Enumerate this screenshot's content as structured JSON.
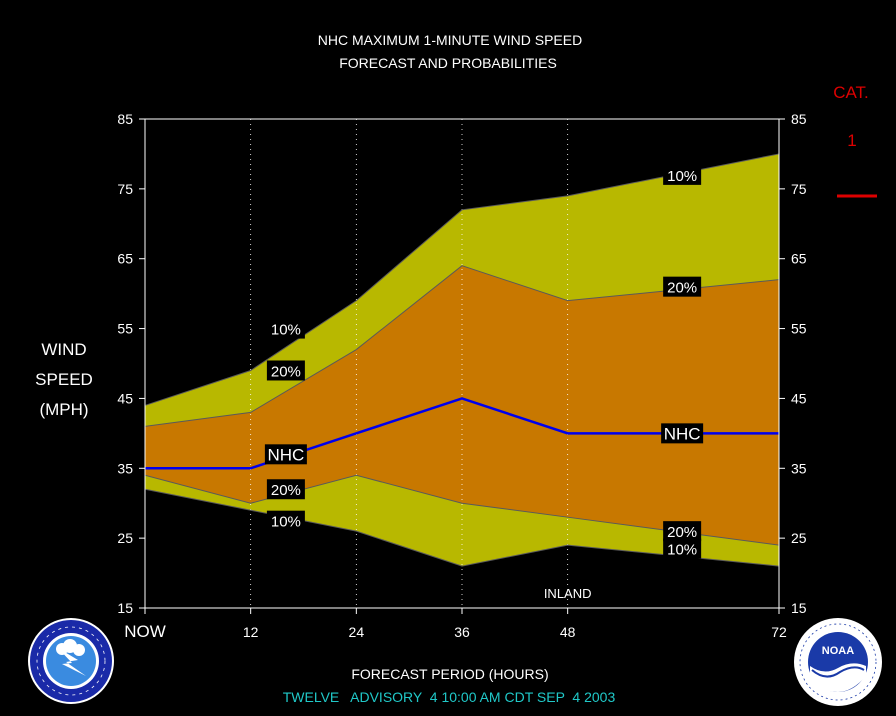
{
  "chart_data": {
    "type": "area",
    "title": "NHC MAXIMUM 1-MINUTE WIND SPEED",
    "subtitle": "FORECAST AND PROBABILITIES",
    "ylabel_lines": [
      "WIND",
      "SPEED",
      "(MPH)"
    ],
    "xlabel": "FORECAST PERIOD (HOURS)",
    "x_ticks": [
      "NOW",
      "12",
      "24",
      "36",
      "48",
      "72"
    ],
    "x_tick_values": [
      0,
      12,
      24,
      36,
      48,
      72
    ],
    "y_ticks": [
      "85",
      "75",
      "65",
      "55",
      "45",
      "35",
      "25",
      "15"
    ],
    "ylim": [
      15,
      85
    ],
    "xlim": [
      0,
      72
    ],
    "grid_verticals": [
      12,
      24,
      36,
      48
    ],
    "x": [
      0,
      12,
      24,
      36,
      48,
      72
    ],
    "series": [
      {
        "name": "10%",
        "role": "upper_10",
        "values": [
          44,
          49,
          59,
          72,
          74,
          80
        ]
      },
      {
        "name": "20%",
        "role": "upper_20",
        "values": [
          41,
          43,
          52,
          64,
          59,
          62
        ]
      },
      {
        "name": "NHC",
        "role": "forecast",
        "values": [
          35,
          35,
          40,
          45,
          40,
          40
        ]
      },
      {
        "name": "20%",
        "role": "lower_20",
        "values": [
          34,
          30,
          34,
          30,
          28,
          24
        ]
      },
      {
        "name": "10%",
        "role": "lower_10",
        "values": [
          32,
          29,
          26,
          21,
          24,
          21
        ]
      }
    ],
    "annotations": {
      "upper_10_left": {
        "text": "10%",
        "x": 16,
        "y": 55
      },
      "upper_20_left": {
        "text": "20%",
        "x": 16,
        "y": 49
      },
      "nhc_left": {
        "text": "NHC",
        "x": 16,
        "y": 37
      },
      "lower_20_left": {
        "text": "20%",
        "x": 16,
        "y": 32
      },
      "lower_10_left": {
        "text": "10%",
        "x": 16,
        "y": 27.5
      },
      "upper_10_right": {
        "text": "10%",
        "x": 61,
        "y": 77
      },
      "upper_20_right": {
        "text": "20%",
        "x": 61,
        "y": 61
      },
      "nhc_right": {
        "text": "NHC",
        "x": 61,
        "y": 40
      },
      "lower_20_right": {
        "text": "20%",
        "x": 61,
        "y": 26
      },
      "lower_10_right": {
        "text": "10%",
        "x": 61,
        "y": 23.5
      },
      "inland": {
        "text": "INLAND",
        "x": 48,
        "y": 17
      }
    },
    "category": {
      "label": "CAT.",
      "value": "1"
    },
    "colors": {
      "band_10": "#b8b800",
      "band_20": "#c87800",
      "forecast_line": "#0000ee",
      "category": "#dd0000",
      "footer": "#20c8c8",
      "plot_bg": "#000000"
    }
  },
  "footer": {
    "advisory": "TWELVE   ADVISORY  4 10:00 AM CDT SEP  4 2003"
  },
  "logos": {
    "nws": "NATIONAL WEATHER SERVICE",
    "noaa": "NOAA"
  }
}
